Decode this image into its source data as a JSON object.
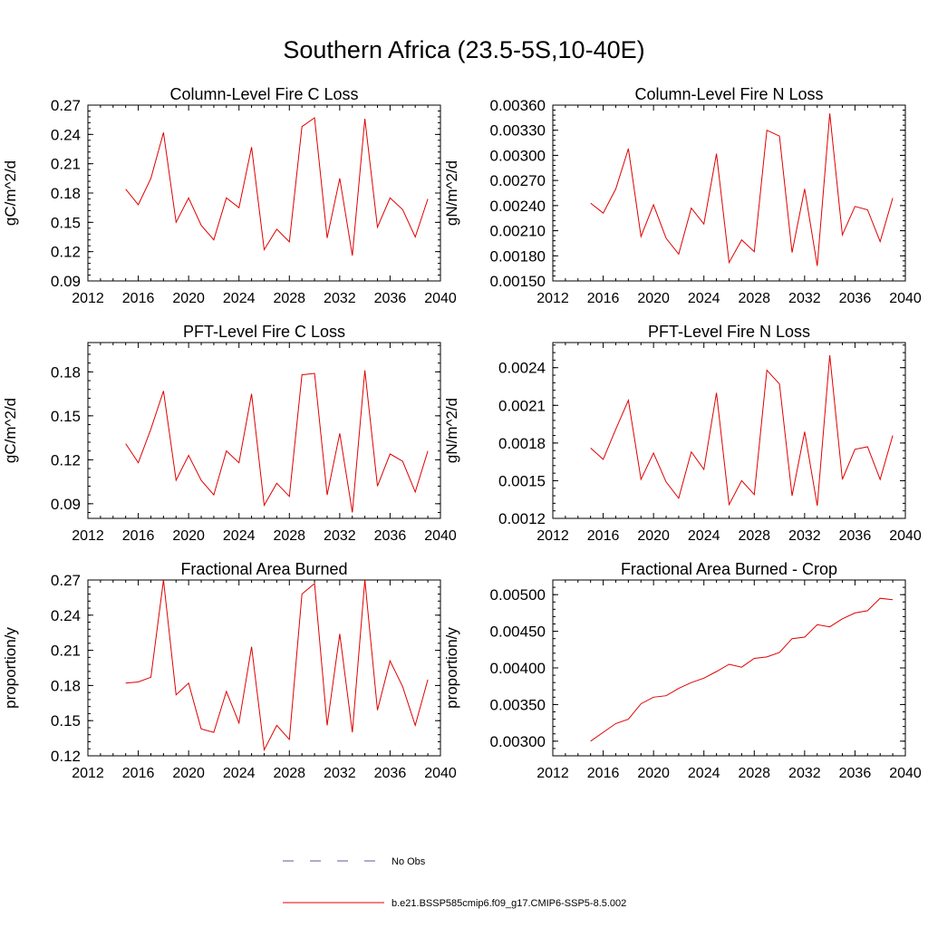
{
  "figure": {
    "title": "Southern Africa (23.5-5S,10-40E)"
  },
  "legend": [
    {
      "label": "No Obs",
      "color": "#5a5aa0",
      "dash": true
    },
    {
      "label": "b.e21.BSSP585cmip6.f09_g17.CMIP6-SSP5-8.5.002",
      "color": "#e00000",
      "dash": false
    }
  ],
  "chart_data": [
    {
      "type": "line",
      "title": "Column-Level Fire C Loss",
      "ylabel": "gC/m^2/d",
      "xlim": [
        2012,
        2040
      ],
      "xticks": [
        2012,
        2016,
        2020,
        2024,
        2028,
        2032,
        2036,
        2040
      ],
      "ylim": [
        0.09,
        0.27
      ],
      "yticks": [
        "0.09",
        "0.12",
        "0.15",
        "0.18",
        "0.21",
        "0.24",
        "0.27"
      ],
      "ytick_step": 0.03,
      "series": [
        {
          "color": "#e00000",
          "x": [
            2015,
            2016,
            2017,
            2018,
            2019,
            2020,
            2021,
            2022,
            2023,
            2024,
            2025,
            2026,
            2027,
            2028,
            2029,
            2030,
            2031,
            2032,
            2033,
            2034,
            2035,
            2036,
            2037,
            2038,
            2039
          ],
          "values": [
            0.184,
            0.168,
            0.195,
            0.242,
            0.15,
            0.175,
            0.147,
            0.132,
            0.175,
            0.165,
            0.227,
            0.122,
            0.143,
            0.13,
            0.248,
            0.257,
            0.134,
            0.195,
            0.116,
            0.256,
            0.145,
            0.175,
            0.163,
            0.135,
            0.174
          ]
        }
      ]
    },
    {
      "type": "line",
      "title": "Column-Level Fire N Loss",
      "ylabel": "gN/m^2/d",
      "xlim": [
        2012,
        2040
      ],
      "xticks": [
        2012,
        2016,
        2020,
        2024,
        2028,
        2032,
        2036,
        2040
      ],
      "ylim": [
        0.0015,
        0.0036
      ],
      "yticks": [
        "0.00150",
        "0.00180",
        "0.00210",
        "0.00240",
        "0.00270",
        "0.00300",
        "0.00330",
        "0.00360"
      ],
      "ytick_step": 0.0003,
      "series": [
        {
          "color": "#e00000",
          "x": [
            2015,
            2016,
            2017,
            2018,
            2019,
            2020,
            2021,
            2022,
            2023,
            2024,
            2025,
            2026,
            2027,
            2028,
            2029,
            2030,
            2031,
            2032,
            2033,
            2034,
            2035,
            2036,
            2037,
            2038,
            2039
          ],
          "values": [
            0.00243,
            0.00231,
            0.0026,
            0.00308,
            0.00203,
            0.00241,
            0.00201,
            0.00182,
            0.00237,
            0.00218,
            0.00302,
            0.00172,
            0.00199,
            0.00185,
            0.0033,
            0.00323,
            0.00184,
            0.0026,
            0.00168,
            0.0035,
            0.00205,
            0.00239,
            0.00235,
            0.00197,
            0.00249
          ]
        }
      ]
    },
    {
      "type": "line",
      "title": "PFT-Level Fire C Loss",
      "ylabel": "gC/m^2/d",
      "xlim": [
        2012,
        2040
      ],
      "xticks": [
        2012,
        2016,
        2020,
        2024,
        2028,
        2032,
        2036,
        2040
      ],
      "ylim": [
        0.08,
        0.2
      ],
      "yticks": [
        "0.09",
        "0.12",
        "0.15",
        "0.18"
      ],
      "ytick_step": 0.03,
      "series": [
        {
          "color": "#e00000",
          "x": [
            2015,
            2016,
            2017,
            2018,
            2019,
            2020,
            2021,
            2022,
            2023,
            2024,
            2025,
            2026,
            2027,
            2028,
            2029,
            2030,
            2031,
            2032,
            2033,
            2034,
            2035,
            2036,
            2037,
            2038,
            2039
          ],
          "values": [
            0.131,
            0.118,
            0.141,
            0.167,
            0.106,
            0.123,
            0.106,
            0.096,
            0.126,
            0.118,
            0.165,
            0.089,
            0.104,
            0.095,
            0.178,
            0.179,
            0.096,
            0.138,
            0.084,
            0.181,
            0.102,
            0.124,
            0.119,
            0.098,
            0.126
          ]
        }
      ]
    },
    {
      "type": "line",
      "title": "PFT-Level Fire N Loss",
      "ylabel": "gN/m^2/d",
      "xlim": [
        2012,
        2040
      ],
      "xticks": [
        2012,
        2016,
        2020,
        2024,
        2028,
        2032,
        2036,
        2040
      ],
      "ylim": [
        0.0012,
        0.0026
      ],
      "yticks": [
        "0.0012",
        "0.0015",
        "0.0018",
        "0.0021",
        "0.0024"
      ],
      "ytick_step": 0.0003,
      "series": [
        {
          "color": "#e00000",
          "x": [
            2015,
            2016,
            2017,
            2018,
            2019,
            2020,
            2021,
            2022,
            2023,
            2024,
            2025,
            2026,
            2027,
            2028,
            2029,
            2030,
            2031,
            2032,
            2033,
            2034,
            2035,
            2036,
            2037,
            2038,
            2039
          ],
          "values": [
            0.00176,
            0.00167,
            0.00191,
            0.00214,
            0.00151,
            0.00172,
            0.00149,
            0.00136,
            0.00173,
            0.00159,
            0.0022,
            0.00131,
            0.0015,
            0.00139,
            0.00238,
            0.00227,
            0.00138,
            0.00189,
            0.0013,
            0.0025,
            0.00151,
            0.00175,
            0.00177,
            0.00151,
            0.00186
          ]
        }
      ]
    },
    {
      "type": "line",
      "title": "Fractional Area Burned",
      "ylabel": "proportion/y",
      "xlim": [
        2012,
        2040
      ],
      "xticks": [
        2012,
        2016,
        2020,
        2024,
        2028,
        2032,
        2036,
        2040
      ],
      "ylim": [
        0.12,
        0.27
      ],
      "yticks": [
        "0.12",
        "0.15",
        "0.18",
        "0.21",
        "0.24",
        "0.27"
      ],
      "ytick_step": 0.03,
      "series": [
        {
          "color": "#e00000",
          "x": [
            2015,
            2016,
            2017,
            2018,
            2019,
            2020,
            2021,
            2022,
            2023,
            2024,
            2025,
            2026,
            2027,
            2028,
            2029,
            2030,
            2031,
            2032,
            2033,
            2034,
            2035,
            2036,
            2037,
            2038,
            2039
          ],
          "values": [
            0.182,
            0.183,
            0.187,
            0.27,
            0.172,
            0.182,
            0.143,
            0.14,
            0.175,
            0.148,
            0.213,
            0.125,
            0.146,
            0.134,
            0.258,
            0.267,
            0.146,
            0.224,
            0.14,
            0.27,
            0.159,
            0.201,
            0.179,
            0.146,
            0.185
          ]
        }
      ]
    },
    {
      "type": "line",
      "title": "Fractional Area Burned - Crop",
      "ylabel": "proportion/y",
      "xlim": [
        2012,
        2040
      ],
      "xticks": [
        2012,
        2016,
        2020,
        2024,
        2028,
        2032,
        2036,
        2040
      ],
      "ylim": [
        0.0028,
        0.0052
      ],
      "yticks": [
        "0.00300",
        "0.00350",
        "0.00400",
        "0.00450",
        "0.00500"
      ],
      "ytick_step": 0.0005,
      "series": [
        {
          "color": "#e00000",
          "x": [
            2015,
            2016,
            2017,
            2018,
            2019,
            2020,
            2021,
            2022,
            2023,
            2024,
            2025,
            2026,
            2027,
            2028,
            2029,
            2030,
            2031,
            2032,
            2033,
            2034,
            2035,
            2036,
            2037,
            2038,
            2039
          ],
          "values": [
            0.003,
            0.00312,
            0.00324,
            0.0033,
            0.00351,
            0.0036,
            0.00362,
            0.00372,
            0.0038,
            0.00386,
            0.00395,
            0.00405,
            0.00401,
            0.00413,
            0.00415,
            0.00421,
            0.0044,
            0.00442,
            0.00459,
            0.00456,
            0.00467,
            0.00475,
            0.00478,
            0.00495,
            0.00493
          ]
        }
      ]
    }
  ]
}
